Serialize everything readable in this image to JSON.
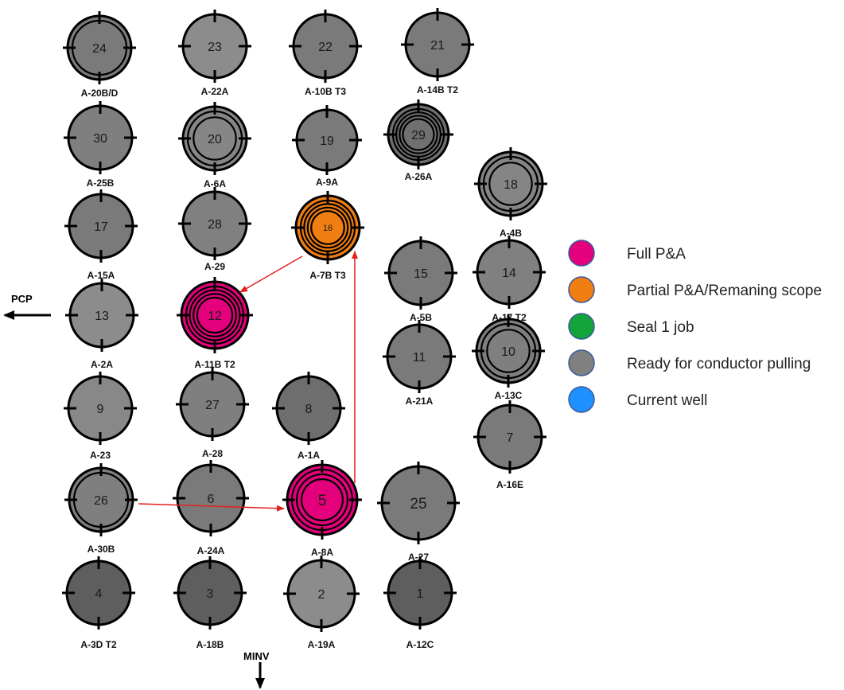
{
  "colors": {
    "full_pa": "#e4007c",
    "partial_pa": "#f07e12",
    "seal_job": "#12a33a",
    "ready": "#808080",
    "current": "#1e90ff",
    "ring_stroke": "#000000",
    "marker_outline": "#3a5a9a",
    "arrow": "#e41f1f"
  },
  "legend": [
    {
      "label": "Full P&A",
      "status": "full_pa"
    },
    {
      "label": "Partial P&A/Remaning scope",
      "status": "partial_pa"
    },
    {
      "label": "Seal 1 job",
      "status": "seal_job"
    },
    {
      "label": "Ready for conductor pulling",
      "status": "ready"
    },
    {
      "label": "Current well",
      "status": "current"
    }
  ],
  "directions": {
    "left": "PCP",
    "down": "MINV"
  },
  "wells": [
    {
      "num": "24",
      "label": "A-20B/D",
      "status": "ready",
      "rings": 2,
      "shade": "#7a7a7a"
    },
    {
      "num": "23",
      "label": "A-22A",
      "status": "ready",
      "rings": 1,
      "shade": "#8c8c8c"
    },
    {
      "num": "22",
      "label": "A-10B T3",
      "status": "ready",
      "rings": 1,
      "shade": "#7a7a7a"
    },
    {
      "num": "21",
      "label": "A-14B T2",
      "status": "ready",
      "rings": 1,
      "shade": "#7a7a7a"
    },
    {
      "num": "30",
      "label": "A-25B",
      "status": "ready",
      "rings": 1,
      "shade": "#7f7f7f"
    },
    {
      "num": "20",
      "label": "A-6A",
      "status": "ready",
      "rings": 3,
      "shade": "#868686"
    },
    {
      "num": "19",
      "label": "A-9A",
      "status": "ready",
      "rings": 1,
      "shade": "#7a7a7a"
    },
    {
      "num": "29",
      "label": "A-26A",
      "status": "ready",
      "rings": 5,
      "shade": "#707070"
    },
    {
      "num": "18",
      "label": "A-4B",
      "status": "ready",
      "rings": 3,
      "shade": "#858585"
    },
    {
      "num": "17",
      "label": "A-15A",
      "status": "ready",
      "rings": 1,
      "shade": "#7a7a7a"
    },
    {
      "num": "28",
      "label": "A-29",
      "status": "ready",
      "rings": 1,
      "shade": "#808080"
    },
    {
      "num": "16",
      "label": "A-7B T3",
      "status": "partial_pa",
      "rings": 5,
      "shade": "#f07e12"
    },
    {
      "num": "15",
      "label": "A-5B",
      "status": "ready",
      "rings": 1,
      "shade": "#7a7a7a"
    },
    {
      "num": "14",
      "label": "A-17 T2",
      "status": "ready",
      "rings": 1,
      "shade": "#808080"
    },
    {
      "num": "13",
      "label": "A-2A",
      "status": "ready",
      "rings": 1,
      "shade": "#8c8c8c"
    },
    {
      "num": "12",
      "label": "A-11B T2",
      "status": "full_pa",
      "rings": 5,
      "shade": "#e4007c"
    },
    {
      "num": "11",
      "label": "A-21A",
      "status": "ready",
      "rings": 1,
      "shade": "#7a7a7a"
    },
    {
      "num": "10",
      "label": "A-13C",
      "status": "ready",
      "rings": 3,
      "shade": "#7f7f7f"
    },
    {
      "num": "9",
      "label": "A-23",
      "status": "ready",
      "rings": 1,
      "shade": "#888888"
    },
    {
      "num": "27",
      "label": "A-28",
      "status": "ready",
      "rings": 1,
      "shade": "#7f7f7f"
    },
    {
      "num": "8",
      "label": "A-1A",
      "status": "ready",
      "rings": 1,
      "shade": "#6e6e6e"
    },
    {
      "num": "7",
      "label": "A-16E",
      "status": "ready",
      "rings": 1,
      "shade": "#7a7a7a"
    },
    {
      "num": "26",
      "label": "A-30B",
      "status": "ready",
      "rings": 2,
      "shade": "#7f7f7f"
    },
    {
      "num": "6",
      "label": "A-24A",
      "status": "ready",
      "rings": 1,
      "shade": "#7a7a7a"
    },
    {
      "num": "5",
      "label": "A-8A",
      "status": "full_pa",
      "rings": 4,
      "shade": "#e4007c"
    },
    {
      "num": "25",
      "label": "A-27",
      "status": "ready",
      "rings": 1,
      "shade": "#7a7a7a"
    },
    {
      "num": "4",
      "label": "A-3D T2",
      "status": "ready",
      "rings": 1,
      "shade": "#5e5e5e"
    },
    {
      "num": "3",
      "label": "A-18B",
      "status": "ready",
      "rings": 1,
      "shade": "#5e5e5e"
    },
    {
      "num": "2",
      "label": "A-19A",
      "status": "ready",
      "rings": 1,
      "shade": "#8c8c8c"
    },
    {
      "num": "1",
      "label": "A-12C",
      "status": "ready",
      "rings": 1,
      "shade": "#5e5e5e"
    }
  ],
  "sequence": [
    {
      "from": "26",
      "to": "5"
    },
    {
      "from": "5",
      "to": "16"
    },
    {
      "from": "16",
      "to": "12"
    }
  ]
}
